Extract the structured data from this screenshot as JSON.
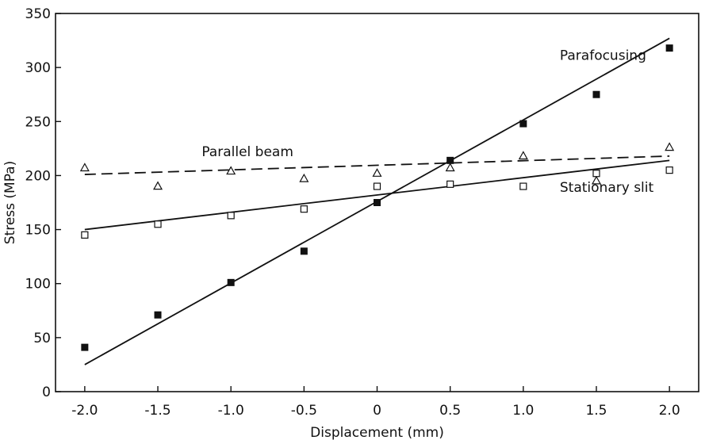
{
  "chart_data": {
    "type": "scatter",
    "xlabel": "Displacement (mm)",
    "ylabel": "Stress (MPa)",
    "xlim": [
      -2.2,
      2.2
    ],
    "ylim": [
      0,
      350
    ],
    "xticks": [
      -2.0,
      -1.5,
      -1.0,
      -0.5,
      0,
      0.5,
      1.0,
      1.5,
      2.0
    ],
    "xtick_labels": [
      "-2.0",
      "-1.5",
      "-1.0",
      "-0.5",
      "0",
      "0.5",
      "1.0",
      "1.5",
      "2.0"
    ],
    "yticks": [
      0,
      50,
      100,
      150,
      200,
      250,
      300,
      350
    ],
    "ytick_labels": [
      "0",
      "50",
      "100",
      "150",
      "200",
      "250",
      "300",
      "350"
    ],
    "grid": false,
    "legend": "none",
    "series": [
      {
        "name": "Parafocusing",
        "marker": "filled-square",
        "line": "solid",
        "x": [
          -2.0,
          -1.5,
          -1.0,
          -0.5,
          0,
          0.5,
          1.0,
          1.5,
          2.0
        ],
        "y": [
          41,
          71,
          101,
          130,
          175,
          214,
          248,
          275,
          318
        ],
        "fit": {
          "x": [
            -2.0,
            2.0
          ],
          "y": [
            25,
            327
          ]
        }
      },
      {
        "name": "Parallel beam",
        "marker": "open-triangle",
        "line": "dashed",
        "x": [
          -2.0,
          -1.5,
          -1.0,
          -0.5,
          0,
          0.5,
          1.0,
          1.5,
          2.0
        ],
        "y": [
          207,
          190,
          204,
          197,
          202,
          207,
          218,
          195,
          226
        ],
        "fit": {
          "x": [
            -2.0,
            2.0
          ],
          "y": [
            201,
            218
          ]
        }
      },
      {
        "name": "Stationary slit",
        "marker": "open-square",
        "line": "solid",
        "x": [
          -2.0,
          -1.5,
          -1.0,
          -0.5,
          0,
          0.5,
          1.0,
          1.5,
          2.0
        ],
        "y": [
          145,
          155,
          163,
          169,
          190,
          192,
          190,
          202,
          205
        ],
        "fit": {
          "x": [
            -2.0,
            2.0
          ],
          "y": [
            150,
            214
          ]
        }
      }
    ],
    "annotations": [
      {
        "text": "Parafocusing",
        "x": 1.25,
        "y": 307
      },
      {
        "text": "Parallel beam",
        "x": -1.2,
        "y": 218
      },
      {
        "text": "Stationary slit",
        "x": 1.25,
        "y": 185
      }
    ]
  }
}
